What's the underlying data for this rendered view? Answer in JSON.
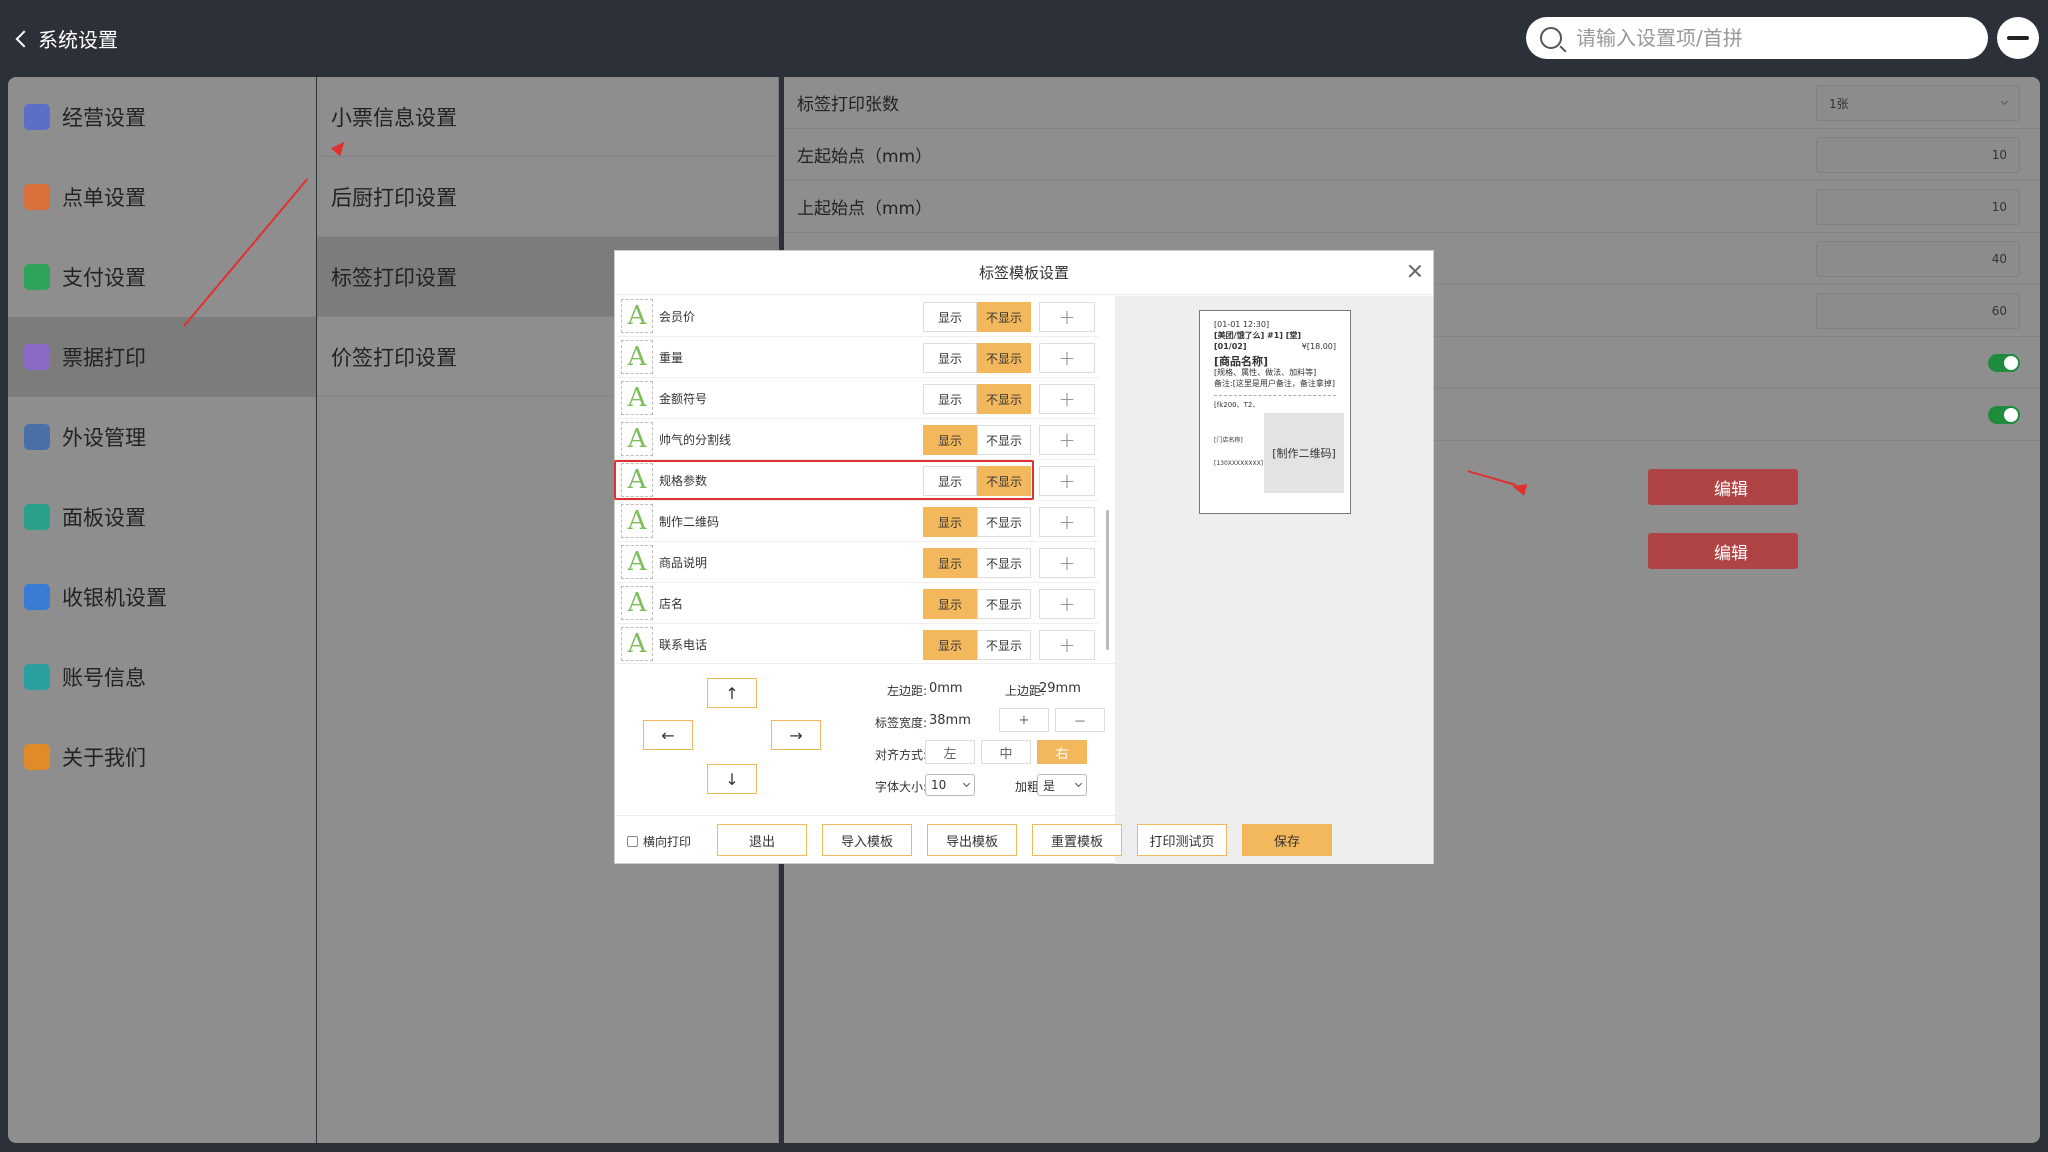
{
  "header": {
    "back_label": "系统设置",
    "search_placeholder": "请输入设置项/首拼"
  },
  "sidebar": {
    "items": [
      {
        "label": "经营设置",
        "icon": "business-icon",
        "color": "#5b6fc7"
      },
      {
        "label": "点单设置",
        "icon": "order-icon",
        "color": "#d9703a"
      },
      {
        "label": "支付设置",
        "icon": "payment-icon",
        "color": "#2ea45a"
      },
      {
        "label": "票据打印",
        "icon": "printer-icon",
        "color": "#8b6bc7"
      },
      {
        "label": "外设管理",
        "icon": "device-icon",
        "color": "#4a6fa5"
      },
      {
        "label": "面板设置",
        "icon": "panel-icon",
        "color": "#2aa08a"
      },
      {
        "label": "收银机设置",
        "icon": "cashier-icon",
        "color": "#3a7bd5"
      },
      {
        "label": "账号信息",
        "icon": "account-icon",
        "color": "#2aa0a0"
      },
      {
        "label": "关于我们",
        "icon": "info-icon",
        "color": "#e08a2a"
      }
    ]
  },
  "submenu": {
    "items": [
      "小票信息设置",
      "后厨打印设置",
      "标签打印设置",
      "价签打印设置"
    ]
  },
  "settings": {
    "rows": [
      {
        "label": "标签打印张数",
        "value": "1张"
      },
      {
        "label": "左起始点（mm）",
        "value": "10"
      },
      {
        "label": "上起始点（mm）",
        "value": "10"
      },
      {
        "label": "",
        "value": "40"
      },
      {
        "label": "",
        "value": "60"
      }
    ],
    "edit_label_1": "编辑",
    "edit_label_2": "编辑"
  },
  "modal": {
    "title": "标签模板设置",
    "show_label": "显示",
    "hide_label": "不显示",
    "fields": [
      {
        "name": "会员价",
        "shown": false
      },
      {
        "name": "重量",
        "shown": false
      },
      {
        "name": "金额符号",
        "shown": false
      },
      {
        "name": "帅气的分割线",
        "shown": true
      },
      {
        "name": "规格参数",
        "shown": false
      },
      {
        "name": "制作二维码",
        "shown": true
      },
      {
        "name": "商品说明",
        "shown": true
      },
      {
        "name": "店名",
        "shown": true
      },
      {
        "name": "联系电话",
        "shown": true
      }
    ],
    "preview": {
      "line1": "[01-01 12:30]",
      "line2": "[美团/饿了么] #1] [堂]",
      "line3": "[01/02]",
      "price": "¥[18.00]",
      "product": "[商品名称]",
      "spec": "[规格、属性、做法、加料等]",
      "note": "备注:[这里是用户备注，备注拿掉]",
      "dims": "[fk200、T2、",
      "shop": "[门店名称]",
      "phone": "[130XXXXXXXX]",
      "qr": "[制作二维码]"
    },
    "controls": {
      "left_margin_label": "左边距:",
      "left_margin_value": "0mm",
      "top_margin_label": "上边距:",
      "top_margin_value": "29mm",
      "width_label": "标签宽度:",
      "width_value": "38mm",
      "plus": "+",
      "minus": "－",
      "align_label": "对齐方式:",
      "align_left": "左",
      "align_center": "中",
      "align_right": "右",
      "font_size_label": "字体大小:",
      "font_size_value": "10",
      "bold_label": "加粗:",
      "bold_value": "是",
      "up": "↑",
      "down": "↓",
      "left": "←",
      "right": "→"
    },
    "footer": {
      "landscape_label": "横向打印",
      "exit": "退出",
      "import": "导入模板",
      "export": "导出模板",
      "reset": "重置模板",
      "test": "打印测试页",
      "save": "保存"
    }
  },
  "colors": {
    "accent": "#f4b85c",
    "annotation": "#e03030"
  }
}
